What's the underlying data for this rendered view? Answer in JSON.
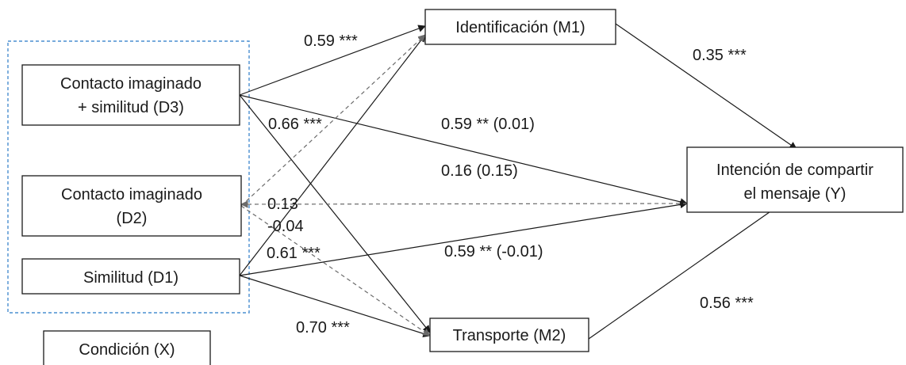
{
  "nodes": {
    "d3": {
      "lines": [
        "Contacto imaginado",
        "+ similitud (D3)"
      ]
    },
    "d2": {
      "lines": [
        "Contacto imaginado",
        "(D2)"
      ]
    },
    "d1": {
      "lines": [
        "Similitud (D1)"
      ]
    },
    "x": {
      "lines": [
        "Condición (X)"
      ]
    },
    "m1": {
      "lines": [
        "Identificación (M1)"
      ]
    },
    "m2": {
      "lines": [
        "Transporte (M2)"
      ]
    },
    "y": {
      "lines": [
        "Intención de compartir",
        "el mensaje (Y)"
      ]
    }
  },
  "paths": {
    "d3_m1": "0.59 ***",
    "m1_y": "0.35 ***",
    "d3_m2": "0.66 ***",
    "d3_y": "0.59 ** (0.01)",
    "d2_y": "0.16 (0.15)",
    "d2_m1": "0.13",
    "d2_m2": "-0.04",
    "d1_m1": "0.61 ***",
    "d1_y": "0.59 ** (-0.01)",
    "d1_m2": "0.70 ***",
    "m2_y": "0.56 ***"
  },
  "colors": {
    "group_outline": "#4a8fd0",
    "dashed_edge": "#6b6b6b"
  }
}
